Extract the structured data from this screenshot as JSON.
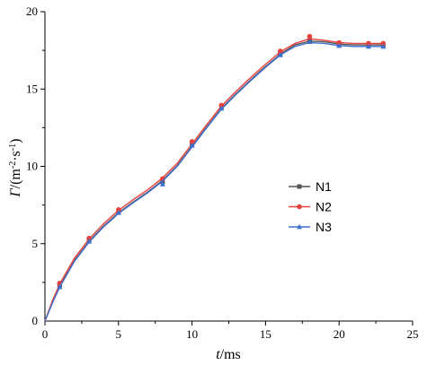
{
  "chart_data": {
    "type": "line",
    "xlabel_symbol": "t",
    "xlabel_unit": "/ms",
    "ylabel_symbol": "Γ",
    "ylabel_unit_prefix": "/(m",
    "ylabel_unit_exp1": "-2",
    "ylabel_unit_mid": "·s",
    "ylabel_unit_exp2": "-1",
    "ylabel_unit_suffix": ")",
    "xlim": [
      0,
      25
    ],
    "ylim": [
      0,
      20
    ],
    "xticks": [
      0,
      5,
      10,
      15,
      20,
      25
    ],
    "yticks": [
      5,
      10,
      15,
      20
    ],
    "grid": false,
    "legend_position": "right-center",
    "series": [
      {
        "name": "N1",
        "color": "#555555",
        "marker": "square",
        "points": [
          [
            0,
            0
          ],
          [
            1,
            2.3
          ],
          [
            3,
            5.2
          ],
          [
            5,
            7.05
          ],
          [
            8,
            9.0
          ],
          [
            10,
            11.4
          ],
          [
            12,
            13.85
          ],
          [
            16,
            17.3
          ],
          [
            18,
            18.15
          ],
          [
            20,
            17.9
          ],
          [
            22,
            17.85
          ],
          [
            23,
            17.85
          ]
        ],
        "curve": [
          [
            0,
            0
          ],
          [
            0.5,
            1.2
          ],
          [
            1,
            2.25
          ],
          [
            2,
            3.9
          ],
          [
            3,
            5.15
          ],
          [
            4,
            6.15
          ],
          [
            5,
            7.0
          ],
          [
            6,
            7.7
          ],
          [
            7,
            8.35
          ],
          [
            8,
            9.1
          ],
          [
            9,
            10.05
          ],
          [
            10,
            11.3
          ],
          [
            11,
            12.55
          ],
          [
            12,
            13.75
          ],
          [
            13,
            14.7
          ],
          [
            14,
            15.6
          ],
          [
            15,
            16.45
          ],
          [
            16,
            17.25
          ],
          [
            17,
            17.85
          ],
          [
            18,
            18.1
          ],
          [
            19,
            18.05
          ],
          [
            20,
            17.9
          ],
          [
            21,
            17.85
          ],
          [
            22,
            17.85
          ],
          [
            23,
            17.85
          ]
        ]
      },
      {
        "name": "N2",
        "color": "#e8413d",
        "marker": "circle",
        "points": [
          [
            0,
            0
          ],
          [
            1,
            2.45
          ],
          [
            3,
            5.35
          ],
          [
            5,
            7.2
          ],
          [
            8,
            9.2
          ],
          [
            10,
            11.6
          ],
          [
            12,
            13.95
          ],
          [
            16,
            17.45
          ],
          [
            18,
            18.4
          ],
          [
            20,
            18.0
          ],
          [
            22,
            17.95
          ],
          [
            23,
            17.95
          ]
        ],
        "curve": [
          [
            0,
            0
          ],
          [
            0.5,
            1.3
          ],
          [
            1,
            2.4
          ],
          [
            2,
            4.05
          ],
          [
            3,
            5.3
          ],
          [
            4,
            6.3
          ],
          [
            5,
            7.15
          ],
          [
            6,
            7.85
          ],
          [
            7,
            8.5
          ],
          [
            8,
            9.25
          ],
          [
            9,
            10.2
          ],
          [
            10,
            11.45
          ],
          [
            11,
            12.7
          ],
          [
            12,
            13.9
          ],
          [
            13,
            14.85
          ],
          [
            14,
            15.75
          ],
          [
            15,
            16.6
          ],
          [
            16,
            17.4
          ],
          [
            17,
            17.95
          ],
          [
            18,
            18.25
          ],
          [
            19,
            18.15
          ],
          [
            20,
            18.0
          ],
          [
            21,
            17.95
          ],
          [
            22,
            17.95
          ],
          [
            23,
            17.95
          ]
        ]
      },
      {
        "name": "N3",
        "color": "#3f6fcf",
        "marker": "triangle",
        "points": [
          [
            0,
            0
          ],
          [
            1,
            2.2
          ],
          [
            3,
            5.15
          ],
          [
            5,
            7.0
          ],
          [
            8,
            8.85
          ],
          [
            10,
            11.35
          ],
          [
            12,
            13.75
          ],
          [
            16,
            17.2
          ],
          [
            18,
            18.05
          ],
          [
            20,
            17.8
          ],
          [
            22,
            17.75
          ],
          [
            23,
            17.75
          ]
        ],
        "curve": [
          [
            0,
            0
          ],
          [
            0.5,
            1.15
          ],
          [
            1,
            2.2
          ],
          [
            2,
            3.85
          ],
          [
            3,
            5.1
          ],
          [
            4,
            6.1
          ],
          [
            5,
            6.95
          ],
          [
            6,
            7.65
          ],
          [
            7,
            8.3
          ],
          [
            8,
            9.05
          ],
          [
            9,
            10.0
          ],
          [
            10,
            11.25
          ],
          [
            11,
            12.5
          ],
          [
            12,
            13.7
          ],
          [
            13,
            14.65
          ],
          [
            14,
            15.55
          ],
          [
            15,
            16.4
          ],
          [
            16,
            17.2
          ],
          [
            17,
            17.75
          ],
          [
            18,
            18.0
          ],
          [
            19,
            17.95
          ],
          [
            20,
            17.8
          ],
          [
            21,
            17.75
          ],
          [
            22,
            17.75
          ],
          [
            23,
            17.75
          ]
        ]
      }
    ]
  }
}
